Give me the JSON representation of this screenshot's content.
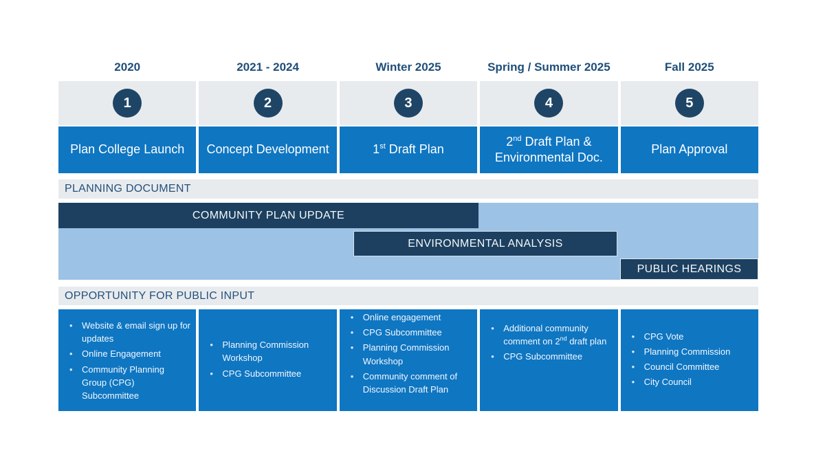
{
  "palette": {
    "mid_blue": "#0f76c2",
    "circle_navy": "#1e4566",
    "bar_navy": "#1d4060",
    "light_blue": "#9cc2e5",
    "light_gray": "#e8ebee",
    "text_navy": "#1f4e79"
  },
  "section_headers": {
    "planning_document": "PLANNING DOCUMENT",
    "public_input": "OPPORTUNITY FOR PUBLIC INPUT"
  },
  "gantt_bars": {
    "community_plan_update": {
      "label": "COMMUNITY PLAN UPDATE",
      "spans_phases": "1-3"
    },
    "environmental_analysis": {
      "label": "ENVIRONMENTAL ANALYSIS",
      "spans_phases": "3-4"
    },
    "public_hearings": {
      "label": "PUBLIC HEARINGS",
      "spans_phases": "5"
    }
  },
  "columns": [
    {
      "period": "2020",
      "step": "1",
      "phase": "Plan College Launch",
      "inputs": [
        "Website & email sign up for updates",
        "Online Engagement",
        "Community Planning Group (CPG) Subcommittee"
      ]
    },
    {
      "period": "2021 - 2024",
      "step": "2",
      "phase": "Concept Development",
      "inputs": [
        "Planning Commission Workshop",
        "CPG Subcommittee"
      ]
    },
    {
      "period": "Winter 2025",
      "step": "3",
      "phase": {
        "pre": "1",
        "sup": "st",
        "post": " Draft Plan"
      },
      "inputs": [
        "Online engagement",
        "CPG Subcommittee",
        "Planning Commission Workshop",
        "Community comment of Discussion Draft Plan"
      ]
    },
    {
      "period": "Spring / Summer 2025",
      "step": "4",
      "phase": {
        "pre": "2",
        "sup": "nd",
        "post": " Draft Plan & Environmental Doc."
      },
      "inputs": [
        {
          "pre": "Additional community comment on 2",
          "sup": "nd",
          "post": " draft plan"
        },
        "CPG Subcommittee"
      ]
    },
    {
      "period": "Fall 2025",
      "step": "5",
      "phase": "Plan Approval",
      "inputs": [
        "CPG Vote",
        "Planning Commission",
        "Council Committee",
        "City Council"
      ]
    }
  ]
}
